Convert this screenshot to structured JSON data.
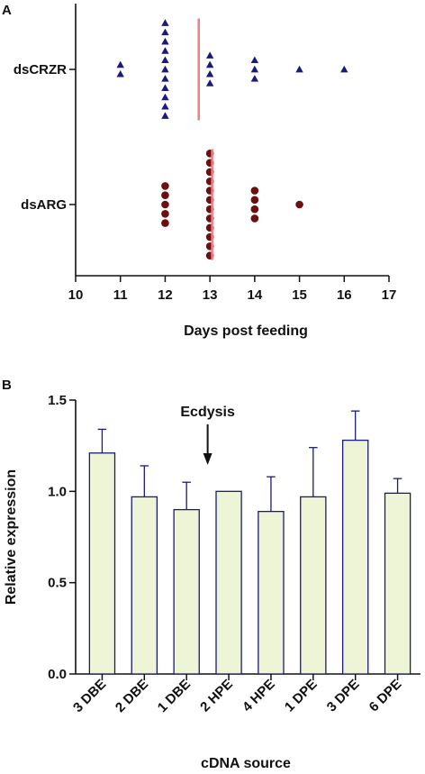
{
  "chart_data": [
    {
      "panel": "A",
      "type": "scatter",
      "xlabel": "Days post feeding",
      "xlim": [
        10,
        17
      ],
      "xticks": [
        10,
        11,
        12,
        13,
        14,
        15,
        16,
        17
      ],
      "groups": [
        {
          "name": "dsCRZR",
          "marker": "triangle",
          "color": "#1a1a7a",
          "points": [
            {
              "day": 11,
              "count": 2
            },
            {
              "day": 12,
              "count": 11
            },
            {
              "day": 13,
              "count": 4
            },
            {
              "day": 14,
              "count": 3
            },
            {
              "day": 15,
              "count": 1
            },
            {
              "day": 16,
              "count": 1
            }
          ],
          "median": 12.75,
          "median_color": "#f08080"
        },
        {
          "name": "dsARG",
          "marker": "circle",
          "color": "#6b1010",
          "points": [
            {
              "day": 12,
              "count": 5
            },
            {
              "day": 13,
              "count": 12
            },
            {
              "day": 14,
              "count": 4
            },
            {
              "day": 15,
              "count": 1
            }
          ],
          "median": 13.05,
          "median_color": "#f08080"
        }
      ],
      "grid": false
    },
    {
      "panel": "B",
      "type": "bar",
      "xlabel": "cDNA source",
      "ylabel": "Relative expression",
      "ylim": [
        0,
        1.5
      ],
      "yticks": [
        "0.0",
        "0.5",
        "1.0",
        "1.5"
      ],
      "categories": [
        "3 DBE",
        "2 DBE",
        "1 DBE",
        "2 HPE",
        "4 HPE",
        "1 DPE",
        "3 DPE",
        "6 DPE"
      ],
      "values": [
        1.21,
        0.97,
        0.9,
        1.0,
        0.89,
        0.97,
        1.28,
        0.99
      ],
      "errors": [
        0.13,
        0.17,
        0.15,
        0.0,
        0.19,
        0.27,
        0.16,
        0.08
      ],
      "bar_fill": "#eef5d6",
      "bar_stroke": "#1a1a7a",
      "annotation": {
        "text": "Ecdysis",
        "between": [
          "1 DBE",
          "2 HPE"
        ]
      },
      "grid": false
    }
  ]
}
